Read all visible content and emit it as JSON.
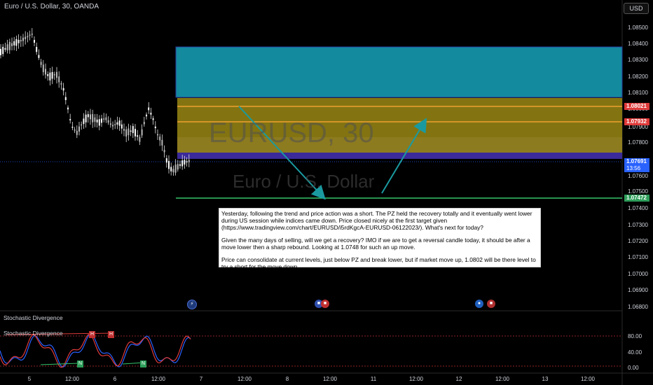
{
  "header": {
    "symbol_title": "Euro / U.S. Dollar, 30, OANDA",
    "currency_button": "USD"
  },
  "watermark": {
    "ticker": "EURUSD, 30",
    "name": "Euro / U.S. Dollar"
  },
  "price_axis": {
    "labels": [
      "1.08500",
      "1.08400",
      "1.08300",
      "1.08200",
      "1.08100",
      "1.08000",
      "1.07900",
      "1.07800",
      "1.07600",
      "1.07500",
      "1.07400",
      "1.07300",
      "1.07200",
      "1.07100",
      "1.07000",
      "1.06900",
      "1.06800"
    ],
    "tags": {
      "pz_top": "1.08021",
      "pz_mid": "1.07932",
      "current": "1.07691",
      "countdown": "13:56",
      "target": "1.07472"
    }
  },
  "time_axis": {
    "labels": [
      "5",
      "12:00",
      "6",
      "12:00",
      "7",
      "12:00",
      "8",
      "12:00",
      "11",
      "12:00",
      "12",
      "12:00",
      "13",
      "12:00"
    ]
  },
  "note": {
    "paragraphs": [
      "Yesterday, following the trend and price action was a short. The PZ held the recovery totally and it eventually went lower during US session while indices came down. Price closed nicely at the first target given (https://www.tradingview.com/chart/EURUSD/i5rdKgcA-EURUSD-06122023/). What's next for today?",
      "Given the many days of selling, will we get a recovery? IMO if we are to get a reversal candle today, it should be after a move lower then a sharp rebound. Looking at 1.0748 for such an up move.",
      "Price can consolidate at current levels, just below PZ and break lower, but if market move up, 1.0802 will be there level to try a short for the move down."
    ]
  },
  "indicator": {
    "pane_title": "Stochastic Divergence",
    "legend_title": "Stochastic Divergence",
    "axis_labels": [
      "80.00",
      "40.00",
      "0.00"
    ],
    "markers": [
      "H",
      "H",
      "N",
      "N"
    ]
  },
  "colors": {
    "background": "#000000",
    "teal_zone": "#138a9e",
    "gold_zone": "#8a7a12",
    "orange_line": "#f0a030",
    "purple_band": "#3a2a9a",
    "green_line": "#35c46a",
    "red_tag": "#e03a3a",
    "blue_tag": "#2962ff",
    "green_tag": "#2e9e5a",
    "arrow": "#1a9aa0"
  }
}
